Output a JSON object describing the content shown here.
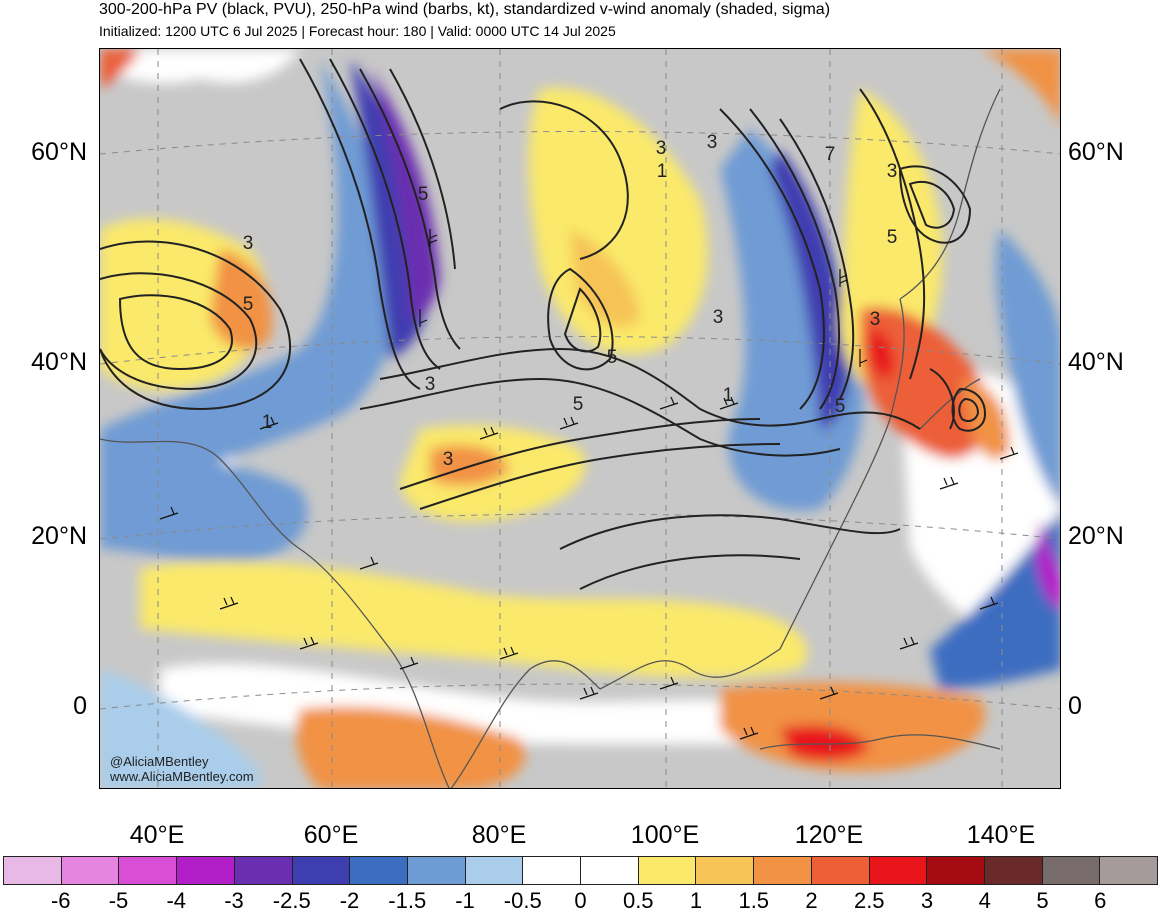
{
  "header": {
    "title": "300-200-hPa PV (black, PVU), 250-hPa wind (barbs, kt), standardized v-wind anomaly (shaded, sigma)",
    "subtitle": "Initialized: 1200 UTC 6 Jul 2025 | Forecast hour: 180 | Valid: 0000 UTC 14 Jul 2025"
  },
  "map": {
    "lat_labels": [
      "60°N",
      "40°N",
      "20°N",
      "0"
    ],
    "lon_labels": [
      "40°E",
      "60°E",
      "80°E",
      "100°E",
      "120°E",
      "140°E"
    ],
    "contour_labels": [
      "5",
      "3",
      "5",
      "3",
      "3",
      "3",
      "5",
      "5",
      "1",
      "3",
      "5",
      "3",
      "1",
      "3",
      "7",
      "5",
      "3",
      "1"
    ],
    "credit": {
      "handle": "@AliciaMBentley",
      "site": "www.AliciaMBentley.com"
    }
  },
  "colorbar": {
    "labels": [
      "-6",
      "-5",
      "-4",
      "-3",
      "-2.5",
      "-2",
      "-1.5",
      "-1",
      "-0.5",
      "0",
      "0.5",
      "1",
      "1.5",
      "2",
      "2.5",
      "3",
      "4",
      "5",
      "6"
    ],
    "colors": [
      "#e8b9e6",
      "#e585e0",
      "#d84fd6",
      "#b21fc9",
      "#6a2fb0",
      "#3f3eb0",
      "#3c6dc1",
      "#6f9bd4",
      "#a9cdea",
      "#ffffff",
      "#ffffff",
      "#fae96a",
      "#f6c457",
      "#f19245",
      "#ec5f37",
      "#e8161b",
      "#a60a12",
      "#6b2a2a",
      "#776b6b",
      "#a59b9b"
    ]
  },
  "theme": {
    "land_gray": "#c8c8c8",
    "contour_color": "#222222",
    "coastline_color": "#555555"
  }
}
